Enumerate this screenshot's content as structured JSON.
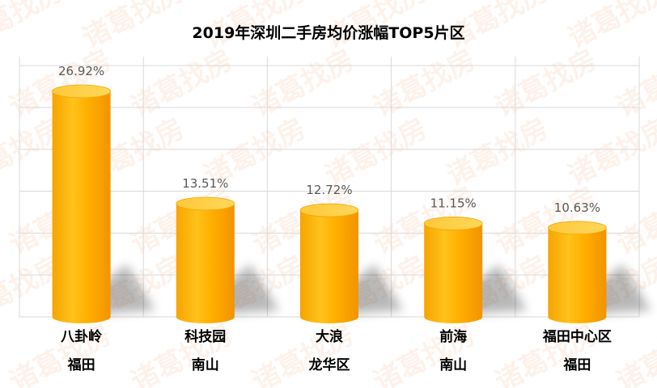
{
  "chart_data": {
    "type": "bar",
    "title": "2019年深圳二手房均价涨幅TOP5片区",
    "categories": [
      [
        "八卦岭",
        "福田"
      ],
      [
        "科技园",
        "南山"
      ],
      [
        "大浪",
        "龙华区"
      ],
      [
        "前海",
        "南山"
      ],
      [
        "福田中心区",
        "福田"
      ]
    ],
    "values": [
      26.92,
      13.51,
      12.72,
      11.15,
      10.63
    ],
    "data_labels": [
      "26.92%",
      "13.51%",
      "12.72%",
      "11.15%",
      "10.63%"
    ],
    "ylim": [
      0,
      30
    ],
    "xlabel": "",
    "ylabel": "",
    "grid": true,
    "legend": "none",
    "bar_style": "cylinder",
    "colors": {
      "bar_main": "#FFA800",
      "bar_light": "#FFCF3E",
      "bar_dark": "#F39A00",
      "grid": "#D9D9D9",
      "label": "#595959",
      "category": "#000000"
    }
  },
  "watermark": "诸葛找房"
}
